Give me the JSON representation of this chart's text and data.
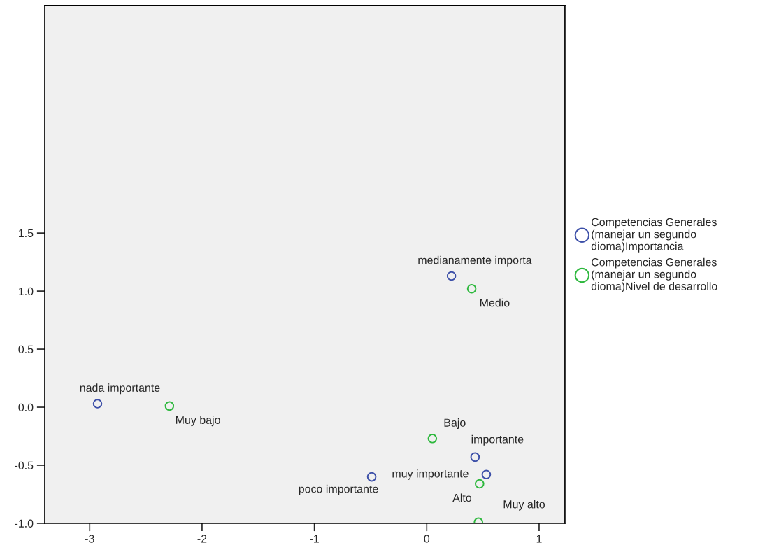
{
  "chart_data": {
    "type": "scatter",
    "series": [
      {
        "name": "Competencias Generales\n(manejar un segundo\ndioma)Importancia",
        "color": "#3c4fa8",
        "x": [
          -2.93,
          0.22,
          0.43,
          0.53,
          -0.49
        ],
        "values": [
          0.03,
          1.13,
          -0.43,
          -0.58,
          -0.6
        ]
      },
      {
        "name": "Competencias Generales\n(manejar un segundo\ndioma)Nivel de desarrollo",
        "color": "#2db83d",
        "x": [
          -2.29,
          0.4,
          0.05,
          0.47,
          0.46
        ],
        "values": [
          0.01,
          1.02,
          -0.27,
          -0.66,
          -0.99
        ]
      }
    ],
    "annotations": [
      {
        "text": "nada importante",
        "x": -2.93,
        "y": 0.03
      },
      {
        "text": "medianamente importa",
        "x": 0.22,
        "y": 1.13
      },
      {
        "text": "importante",
        "x": 0.43,
        "y": -0.43
      },
      {
        "text": "muy importante",
        "x": 0.53,
        "y": -0.58
      },
      {
        "text": "poco importante",
        "x": -0.49,
        "y": -0.6
      },
      {
        "text": "Muy bajo",
        "x": -2.29,
        "y": 0.01
      },
      {
        "text": "Medio",
        "x": 0.4,
        "y": 1.02
      },
      {
        "text": "Bajo",
        "x": 0.05,
        "y": -0.27
      },
      {
        "text": "Alto",
        "x": 0.47,
        "y": -0.66
      },
      {
        "text": "Muy alto",
        "x": 0.46,
        "y": -0.99
      }
    ],
    "xlim": [
      -3.4,
      1.23
    ],
    "ylim": [
      -1.0,
      3.46
    ],
    "xticks": [
      -3,
      -2,
      -1,
      0,
      1
    ],
    "yticks": [
      {
        "value": -1.0,
        "label": "-1.0"
      },
      {
        "value": -0.5,
        "label": "-0.5"
      },
      {
        "value": 0.0,
        "label": "0.0"
      },
      {
        "value": 0.5,
        "label": "0.5"
      },
      {
        "value": 1.0,
        "label": "1.0"
      },
      {
        "value": 1.5,
        "label": "1.5"
      }
    ],
    "grid": false,
    "legend": "right",
    "marker": "circle"
  }
}
